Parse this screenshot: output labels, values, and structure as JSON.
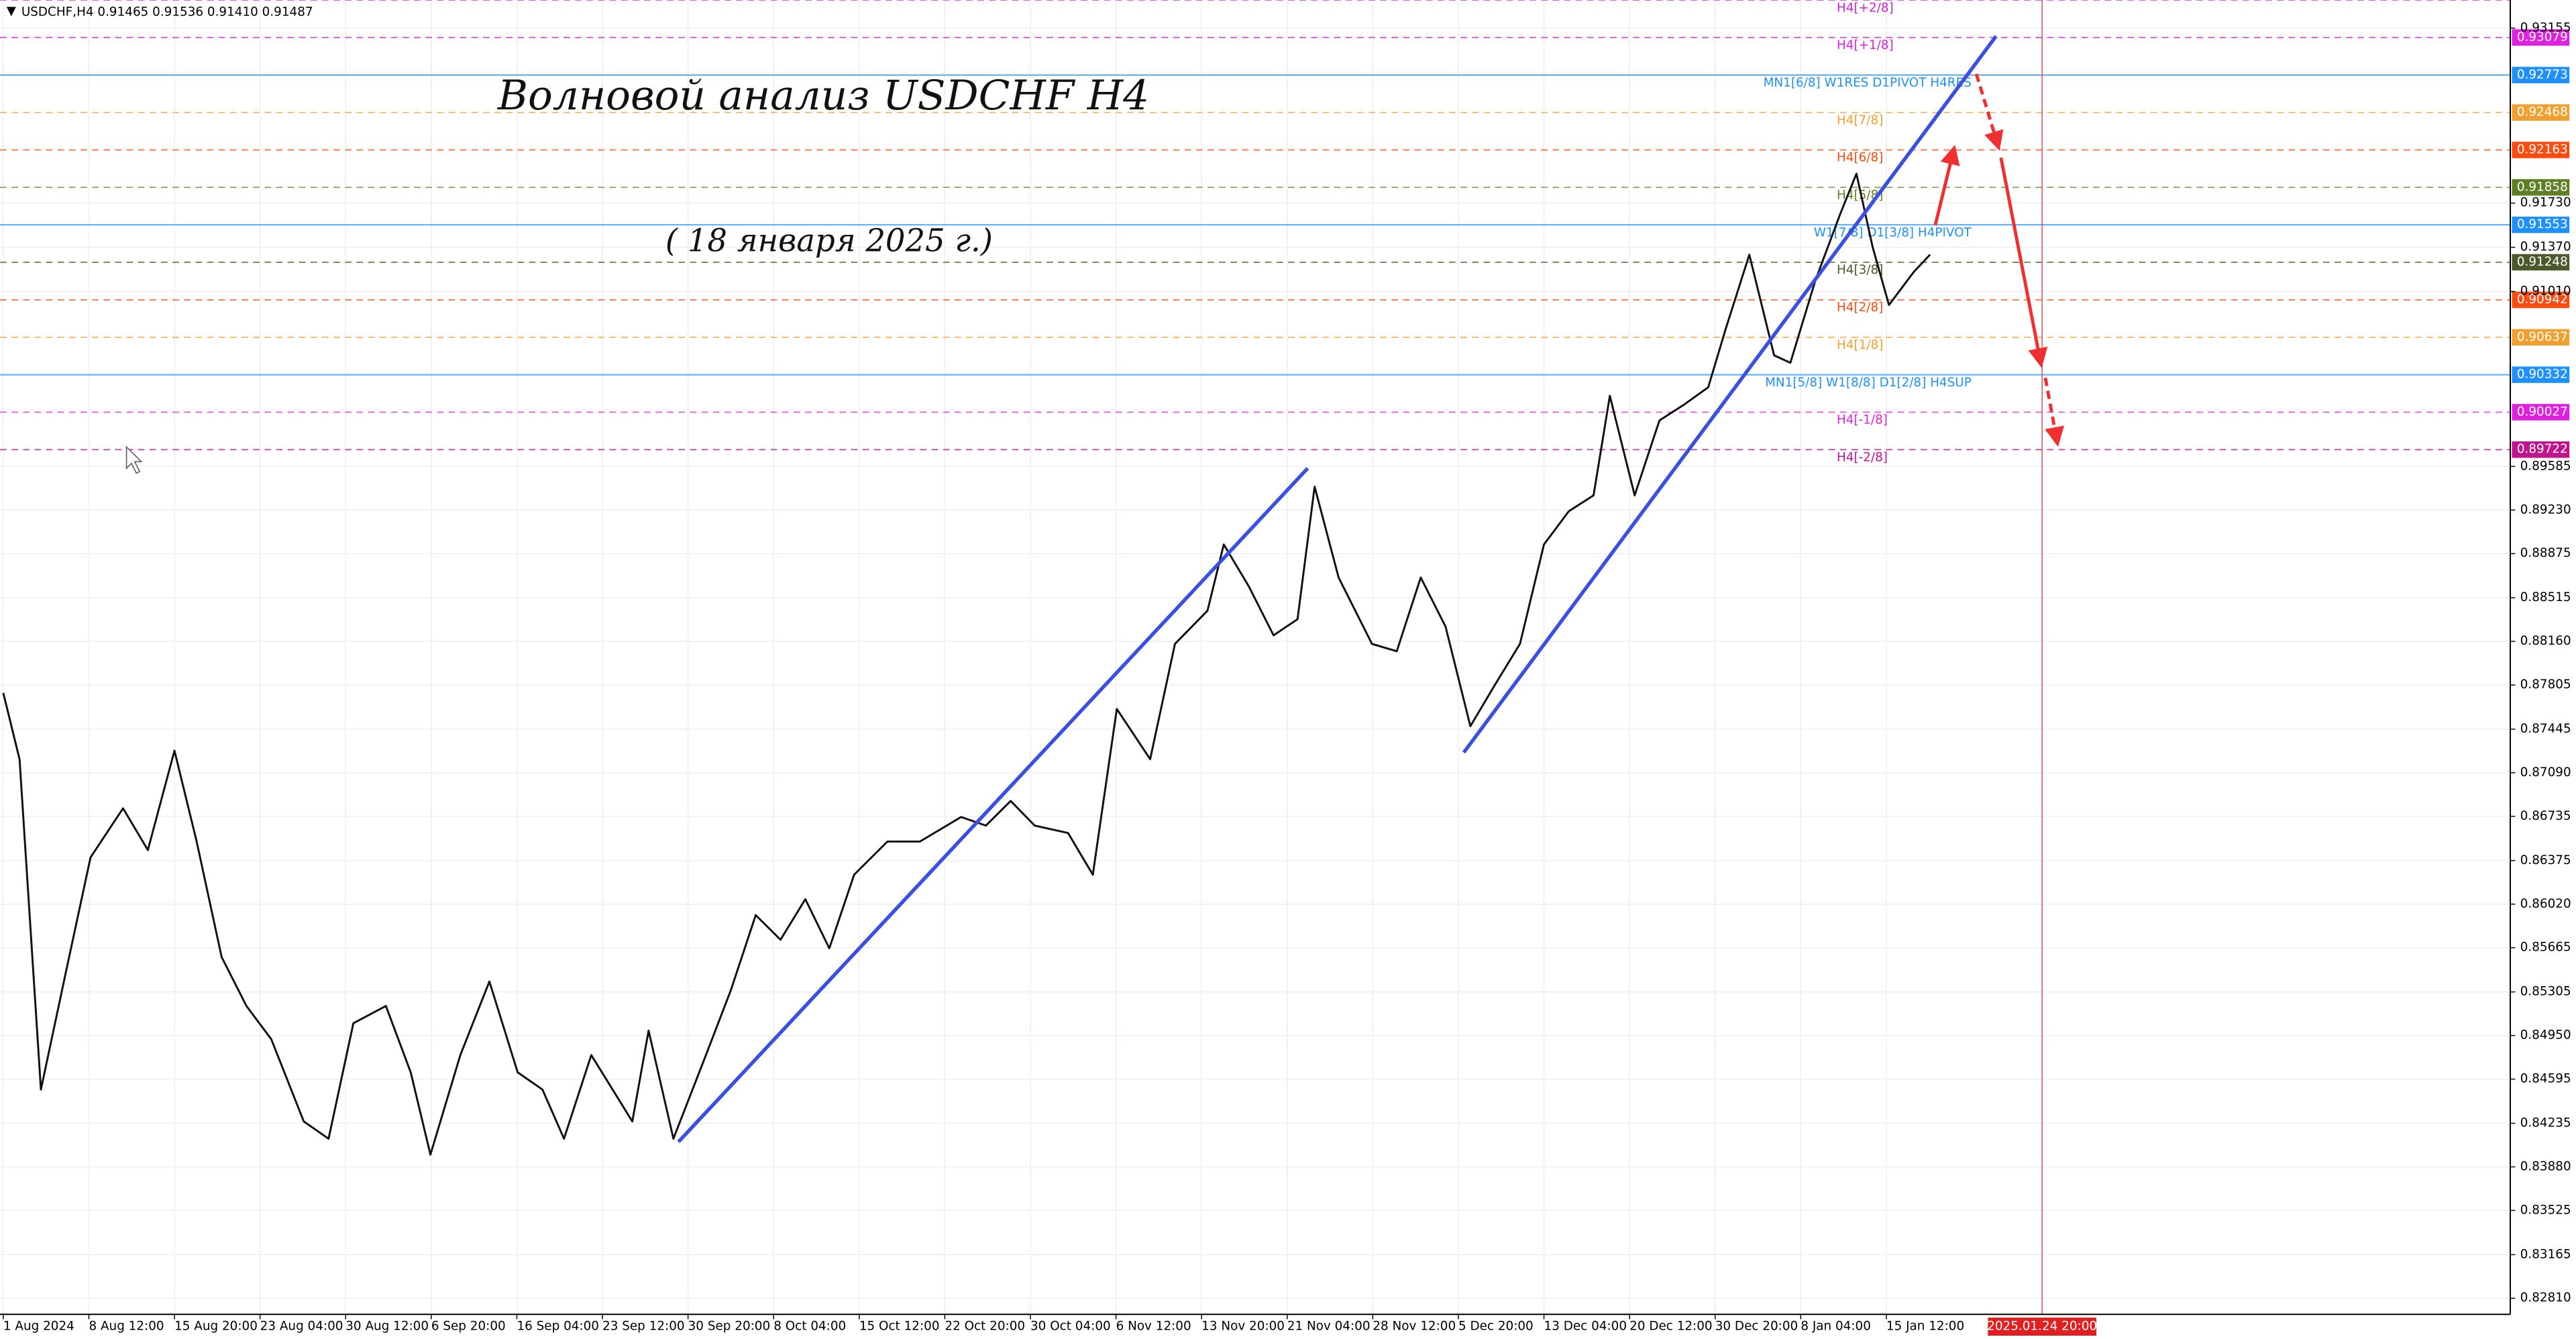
{
  "chart_data": {
    "type": "line",
    "header": "USDCHF,H4  0.91465 0.91536 0.91410 0.91487",
    "title": "Волновой анализ USDCHF H4",
    "subtitle": "( 18 января 2025 г.)",
    "grid": true,
    "ylim": [
      0.82679,
      0.93384
    ],
    "xlim": [
      0,
      29.3
    ],
    "yticks": [
      0.93155,
      {
        "value": 0.9173,
        "label": "0.91730"
      },
      {
        "value": 0.9137,
        "label": "0.91370"
      },
      {
        "value": 0.9101,
        "label": "0.91010"
      },
      0.89585,
      {
        "value": 0.8923,
        "label": "0.89230"
      },
      0.88875,
      0.88515,
      {
        "value": 0.8816,
        "label": "0.88160"
      },
      0.87805,
      0.87445,
      {
        "value": 0.8709,
        "label": "0.87090"
      },
      0.86735,
      0.86375,
      {
        "value": 0.8602,
        "label": "0.86020"
      },
      0.85665,
      0.85305,
      {
        "value": 0.8495,
        "label": "0.84950"
      },
      0.84595,
      0.84235,
      {
        "value": 0.8388,
        "label": "0.83880"
      },
      0.83525,
      0.83165,
      {
        "value": 0.8281,
        "label": "0.82810"
      }
    ],
    "xticks": [
      {
        "value": 0,
        "label": "1 Aug 2024"
      },
      {
        "value": 1,
        "label": "8 Aug 12:00"
      },
      {
        "value": 2,
        "label": "15 Aug 20:00"
      },
      {
        "value": 3,
        "label": "23 Aug 04:00"
      },
      {
        "value": 4,
        "label": "30 Aug 12:00"
      },
      {
        "value": 5,
        "label": "6 Sep 20:00"
      },
      {
        "value": 6,
        "label": "16 Sep 04:00"
      },
      {
        "value": 7,
        "label": "23 Sep 12:00"
      },
      {
        "value": 8,
        "label": "30 Sep 20:00"
      },
      {
        "value": 9,
        "label": "8 Oct 04:00"
      },
      {
        "value": 10,
        "label": "15 Oct 12:00"
      },
      {
        "value": 11,
        "label": "22 Oct 20:00"
      },
      {
        "value": 12,
        "label": "30 Oct 04:00"
      },
      {
        "value": 13,
        "label": "6 Nov 12:00"
      },
      {
        "value": 14,
        "label": "13 Nov 20:00"
      },
      {
        "value": 15,
        "label": "21 Nov 04:00"
      },
      {
        "value": 16,
        "label": "28 Nov 12:00"
      },
      {
        "value": 17,
        "label": "5 Dec 20:00"
      },
      {
        "value": 18,
        "label": "13 Dec 04:00"
      },
      {
        "value": 19,
        "label": "20 Dec 12:00"
      },
      {
        "value": 20,
        "label": "30 Dec 20:00"
      },
      {
        "value": 21,
        "label": "8 Jan 04:00"
      },
      {
        "value": 22,
        "label": "15 Jan 12:00"
      }
    ],
    "marker": {
      "value": 23.82,
      "label": "2025.01.24 20:00",
      "color": "#e02020"
    },
    "levels": [
      {
        "label": "H4[+2/8]",
        "value": 0.93384,
        "color": "#d020d0",
        "style": "dashed"
      },
      {
        "label": "H4[+1/8]",
        "value": 0.93079,
        "color": "#e020e0",
        "style": "dashed"
      },
      {
        "label": "MN1[6/8] W1RES D1PIVOT H4RES",
        "value": 0.92773,
        "color": "#1e90ff",
        "style": "solid"
      },
      {
        "label": "H4[7/8]",
        "value": 0.92468,
        "color": "#f0a030",
        "style": "dashed"
      },
      {
        "label": "H4[6/8]",
        "value": 0.92163,
        "color": "#ff4a10",
        "style": "dashed"
      },
      {
        "label": "H4[5/8]",
        "value": 0.91858,
        "color": "#5f7f23",
        "style": "dashed"
      },
      {
        "label": "W1[7/8] D1[3/8] H4PIVOT",
        "value": 0.91553,
        "color": "#1e90ff",
        "style": "solid"
      },
      {
        "label": "H4[3/8]",
        "value": 0.91248,
        "color": "#4a5a2a",
        "style": "dashed"
      },
      {
        "label": "H4[2/8]",
        "value": 0.90942,
        "color": "#ff4a10",
        "style": "dashed"
      },
      {
        "label": "H4[1/8]",
        "value": 0.90637,
        "color": "#f0a030",
        "style": "dashed"
      },
      {
        "label": "MN1[5/8] W1[8/8] D1[2/8] H4SUP",
        "value": 0.90332,
        "color": "#1e90ff",
        "style": "solid"
      },
      {
        "label": "H4[-1/8]",
        "value": 0.90027,
        "color": "#e020e0",
        "style": "dashed"
      },
      {
        "label": "H4[-2/8]",
        "value": 0.89722,
        "color": "#c0148c",
        "style": "dashed"
      }
    ],
    "series": [
      {
        "color": "#111111",
        "x": [
          0,
          0.19,
          0.44,
          0.73,
          1.02,
          1.4,
          1.69,
          2.0,
          2.26,
          2.55,
          2.84,
          3.13,
          3.51,
          3.8,
          4.09,
          4.47,
          4.76,
          4.99,
          5.34,
          5.68,
          6.01,
          6.3,
          6.55,
          6.87,
          7.35,
          7.54,
          7.83,
          8.21,
          8.5,
          8.79,
          9.08,
          9.37,
          9.65,
          9.94,
          10.33,
          10.71,
          11.19,
          11.48,
          11.77,
          12.05,
          12.44,
          12.73,
          13.01,
          13.4,
          13.69,
          14.07,
          14.26,
          14.55,
          14.84,
          15.12,
          15.32,
          15.6,
          15.99,
          16.28,
          16.56,
          16.85,
          17.14,
          17.43,
          17.72,
          18.0,
          18.29,
          18.58,
          18.77,
          19.06,
          19.35,
          19.64,
          19.92,
          20.12,
          20.4,
          20.69,
          20.88,
          21.17,
          21.46,
          21.65,
          21.84,
          22.03,
          22.32,
          22.51
        ],
        "values": [
          0.8774,
          0.872,
          0.8451,
          0.8546,
          0.864,
          0.868,
          0.8646,
          0.8727,
          0.8653,
          0.8559,
          0.8519,
          0.8492,
          0.8425,
          0.8411,
          0.8505,
          0.8519,
          0.8465,
          0.8398,
          0.8479,
          0.8539,
          0.8465,
          0.8451,
          0.8411,
          0.8479,
          0.8425,
          0.8499,
          0.8411,
          0.8479,
          0.8532,
          0.8593,
          0.8573,
          0.8606,
          0.8566,
          0.8626,
          0.8653,
          0.8653,
          0.8673,
          0.8666,
          0.8686,
          0.8666,
          0.866,
          0.8626,
          0.8761,
          0.872,
          0.8814,
          0.8841,
          0.8895,
          0.8861,
          0.8821,
          0.8834,
          0.8942,
          0.8868,
          0.8814,
          0.8808,
          0.8868,
          0.8828,
          0.8747,
          0.8781,
          0.8814,
          0.8895,
          0.8922,
          0.8935,
          0.9016,
          0.8935,
          0.8996,
          0.9009,
          0.9023,
          0.907,
          0.9131,
          0.9049,
          0.9043,
          0.911,
          0.9164,
          0.9197,
          0.9137,
          0.909,
          0.9117,
          0.9131
        ]
      }
    ]
  }
}
